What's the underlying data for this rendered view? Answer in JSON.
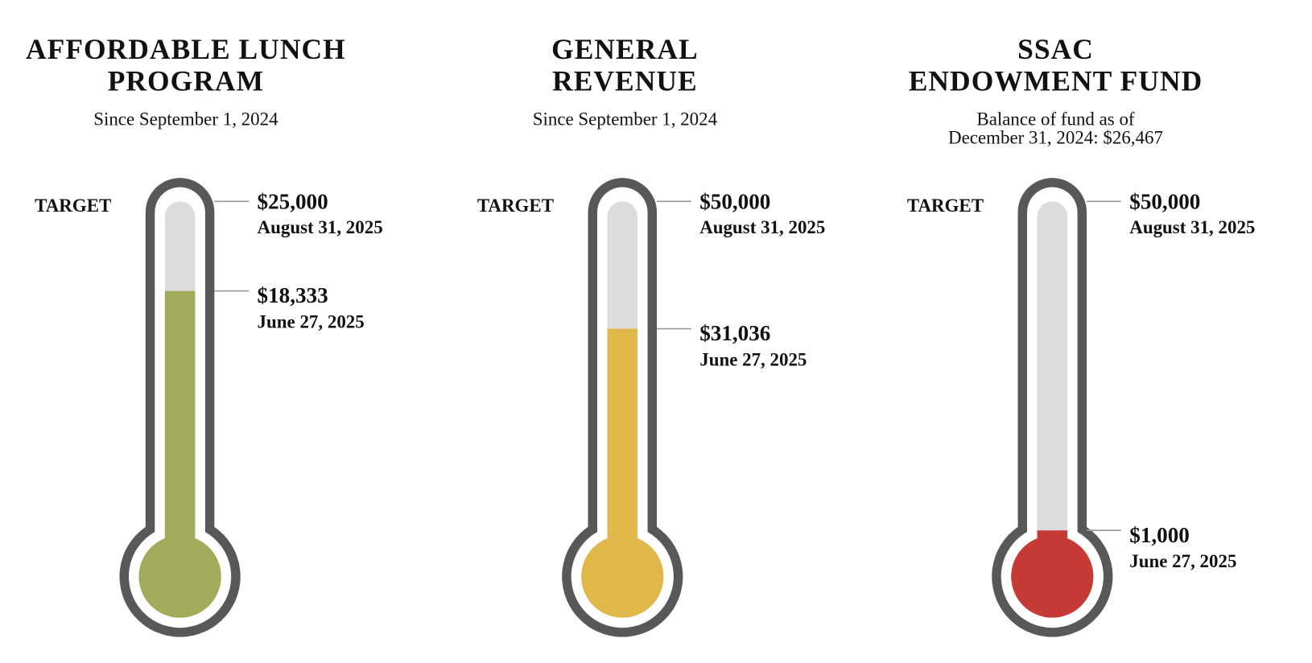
{
  "chart_data": [
    {
      "type": "thermometer",
      "title": [
        "AFFORDABLE LUNCH",
        "PROGRAM"
      ],
      "subtitle": [
        "Since September 1, 2024"
      ],
      "target_label": "TARGET",
      "values": [
        25000,
        18333
      ],
      "value_labels": [
        "$25,000",
        "$18,333"
      ],
      "dates": [
        "August 31, 2025",
        "June 27, 2025"
      ],
      "color": "#a3ab5a"
    },
    {
      "type": "thermometer",
      "title": [
        "GENERAL",
        "REVENUE"
      ],
      "subtitle": [
        "Since September 1, 2024"
      ],
      "target_label": "TARGET",
      "values": [
        50000,
        31036
      ],
      "value_labels": [
        "$50,000",
        "$31,036"
      ],
      "dates": [
        "August 31, 2025",
        "June 27, 2025"
      ],
      "color": "#e0b84a"
    },
    {
      "type": "thermometer",
      "title": [
        "SSAC",
        "ENDOWMENT FUND"
      ],
      "subtitle": [
        "Balance of fund as of",
        "December 31, 2024: $26,467"
      ],
      "target_label": "TARGET",
      "values": [
        50000,
        1000
      ],
      "value_labels": [
        "$50,000",
        "$1,000"
      ],
      "dates": [
        "August 31, 2025",
        "June 27, 2025"
      ],
      "color": "#c63a35"
    }
  ]
}
